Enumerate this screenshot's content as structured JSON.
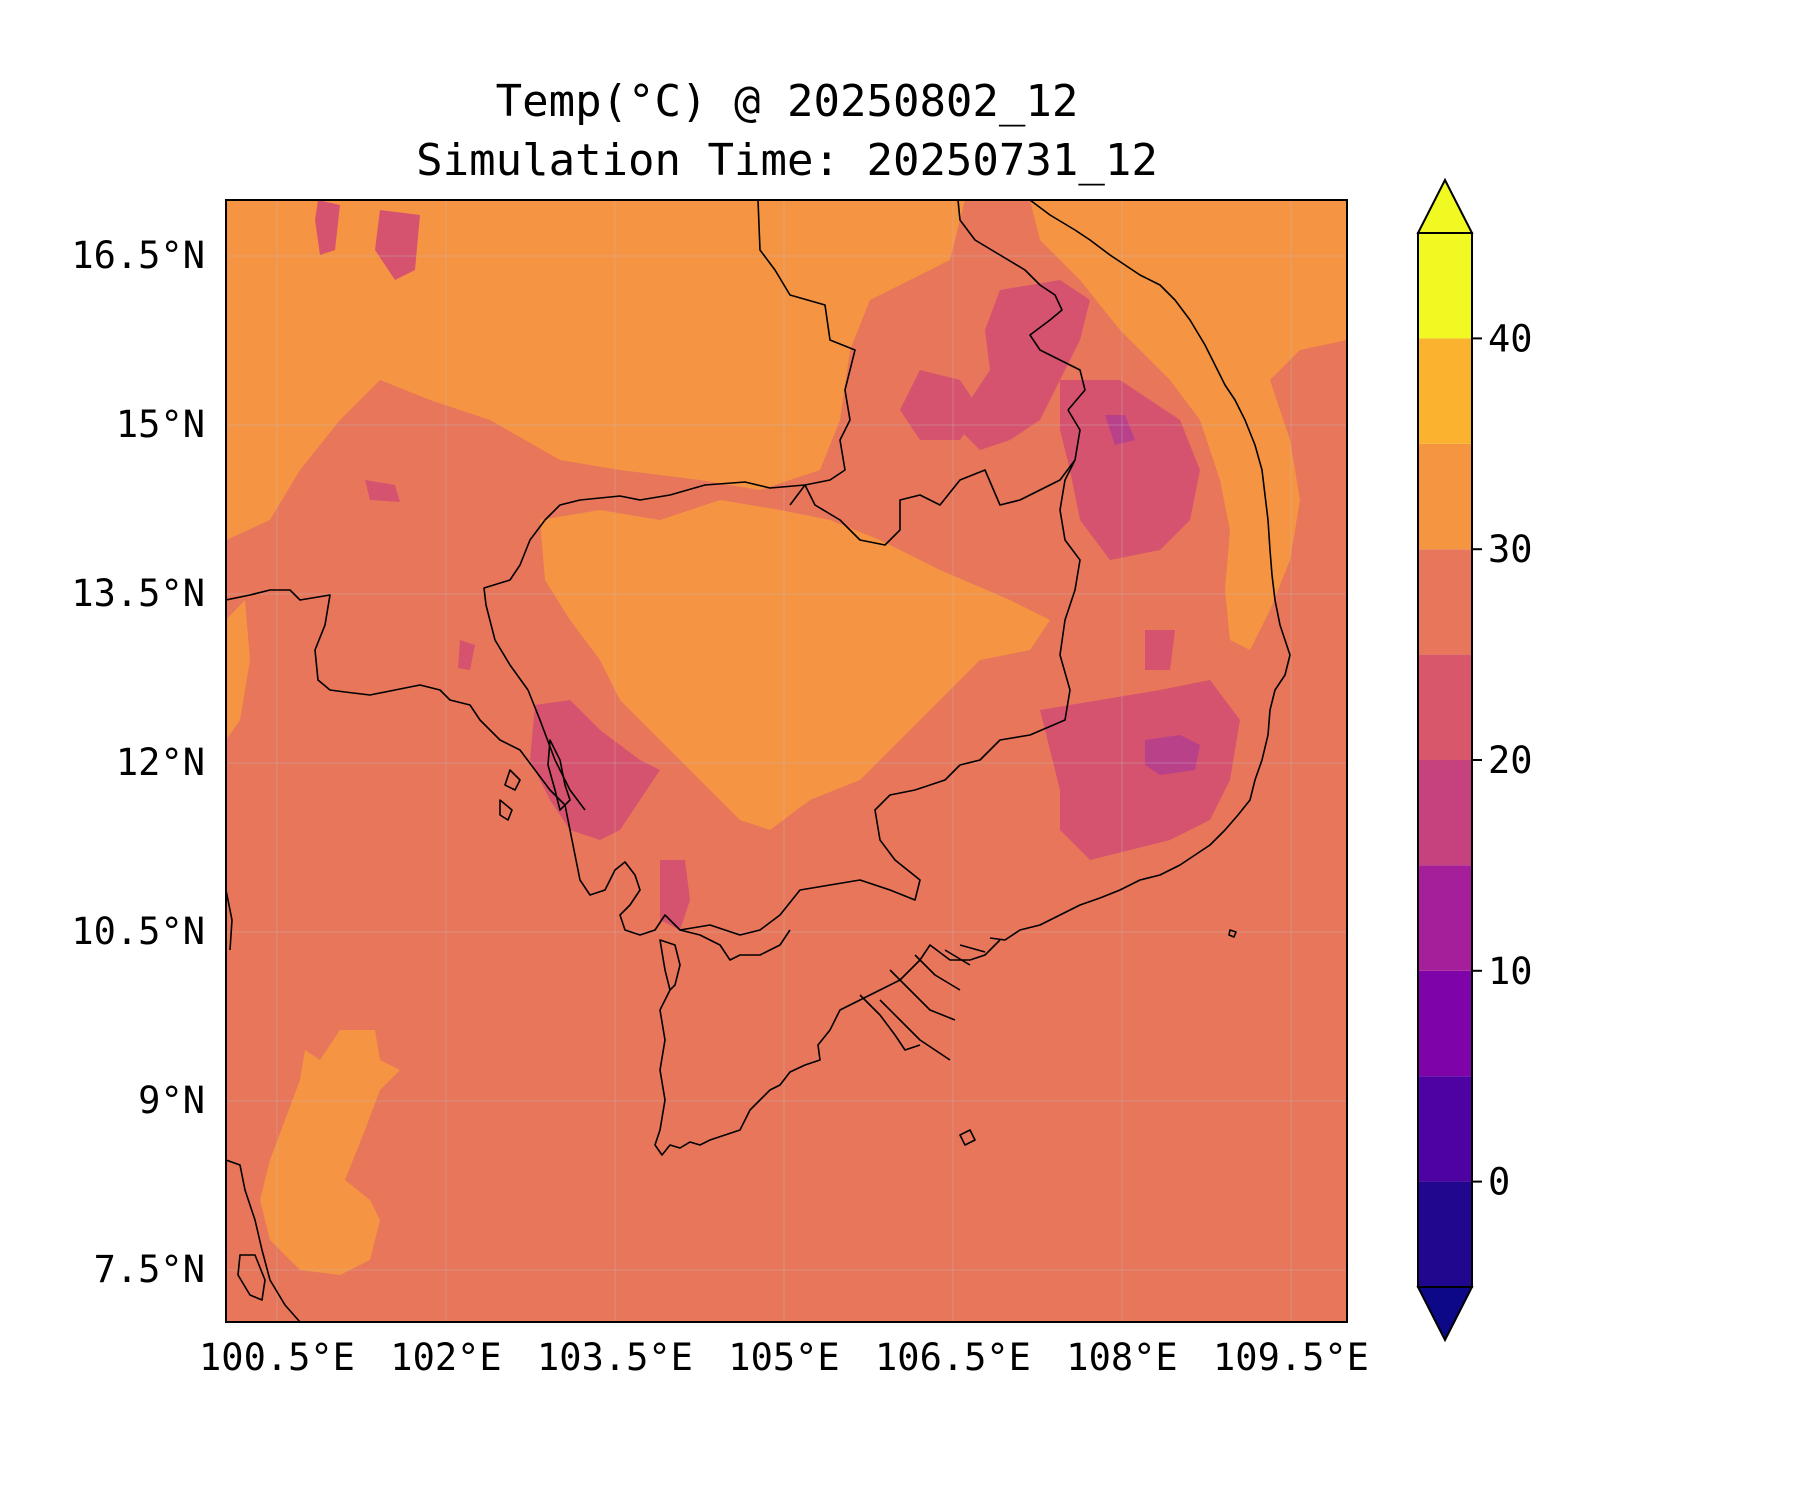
{
  "title": "Temp(°C) @ 20250802_12",
  "subtitle": "Simulation Time: 20250731_12",
  "map": {
    "region": "Indochina (Cambodia, southern Laos, southern Vietnam, eastern Thailand)",
    "lon_range": [
      100,
      110
    ],
    "lat_range": [
      7,
      17
    ],
    "lon_ticks": [
      "100.5°E",
      "102°E",
      "103.5°E",
      "105°E",
      "106.5°E",
      "108°E",
      "109.5°E"
    ],
    "lat_ticks": [
      "16.5°N",
      "15°N",
      "13.5°N",
      "12°N",
      "10.5°N",
      "9°N",
      "7.5°N"
    ],
    "background_class": "25-30",
    "colors": {
      "25-30": "#e8765a",
      "30-35": "#f59543",
      "20-25": "#d5536e",
      "15-20": "#b8418a"
    }
  },
  "colorbar": {
    "ticks": [
      "0",
      "10",
      "20",
      "30",
      "40"
    ],
    "levels": [
      -5,
      0,
      5,
      10,
      15,
      20,
      25,
      30,
      35,
      40,
      45
    ],
    "colors": [
      "#21078e",
      "#4f02a2",
      "#7e03a8",
      "#a61f9a",
      "#c6427e",
      "#d8576b",
      "#e8765a",
      "#f69540",
      "#fbb32f",
      "#f0f921"
    ],
    "under_color": "#0d0887",
    "over_color": "#f0f921",
    "extend": "both"
  }
}
